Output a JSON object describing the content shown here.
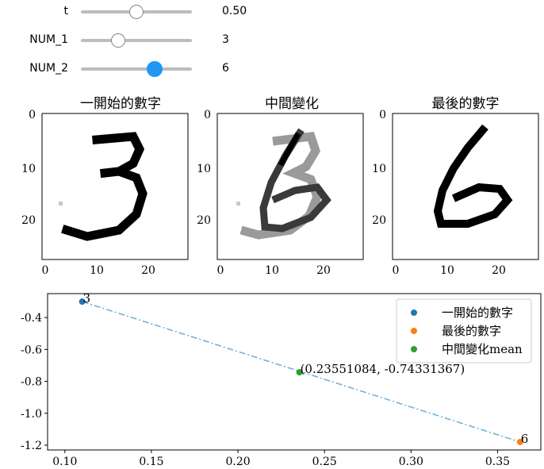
{
  "sliders": [
    {
      "name": "t",
      "value": "0.50",
      "fraction": 0.5
    },
    {
      "name": "NUM_1",
      "value": "3",
      "fraction": 0.333
    },
    {
      "name": "NUM_2",
      "value": "6",
      "fraction": 0.667
    }
  ],
  "panels": [
    {
      "title": "一開始的數字",
      "digit": "3",
      "shade": "#000000"
    },
    {
      "title": "中間變化",
      "digit": "blend",
      "shade": "#8f8f8f"
    },
    {
      "title": "最後的數字",
      "digit": "6",
      "shade": "#000000"
    }
  ],
  "image_axis": {
    "xticks": [
      "0",
      "10",
      "20"
    ],
    "yticks": [
      "0",
      "10",
      "20"
    ]
  },
  "chart_data": {
    "type": "scatter",
    "title": "",
    "xlim": [
      0.09,
      0.375
    ],
    "ylim": [
      -1.23,
      -0.25
    ],
    "xticks": [
      0.1,
      0.15,
      0.2,
      0.25,
      0.3,
      0.35
    ],
    "xtick_labels": [
      "0.10",
      "0.15",
      "0.20",
      "0.25",
      "0.30",
      "0.35"
    ],
    "yticks": [
      -0.4,
      -0.6,
      -0.8,
      -1.0,
      -1.2
    ],
    "ytick_labels": [
      "-0.4",
      "-0.6",
      "-0.8",
      "-1.0",
      "-1.2"
    ],
    "series": [
      {
        "name": "一開始的數字",
        "color": "#1f77b4",
        "x": [
          0.11
        ],
        "y": [
          -0.3
        ],
        "label": "3"
      },
      {
        "name": "最後的數字",
        "color": "#ff7f0e",
        "x": [
          0.363
        ],
        "y": [
          -1.18
        ],
        "label": "6"
      },
      {
        "name": "中間變化mean",
        "color": "#2ca02c",
        "x": [
          0.23551084
        ],
        "y": [
          -0.74331367
        ],
        "label": "(0.23551084, -0.74331367)"
      }
    ],
    "line": {
      "from": [
        0.11,
        -0.3
      ],
      "to": [
        0.363,
        -1.18
      ],
      "style": "dash-dot",
      "color": "#6baed6"
    },
    "legend_position": "top-right"
  }
}
